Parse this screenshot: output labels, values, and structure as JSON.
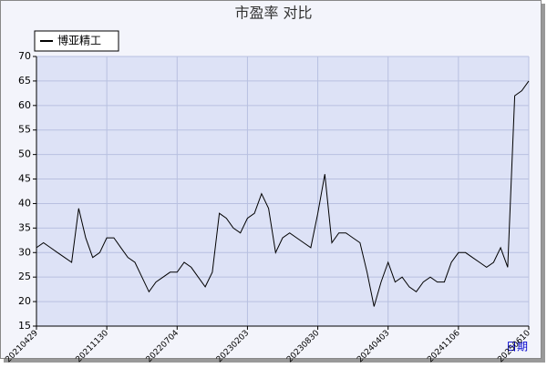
{
  "chart_data": {
    "type": "line",
    "title": "市盈率  对比",
    "x_label": "日期",
    "categories": [
      "20210429",
      null,
      null,
      null,
      null,
      null,
      null,
      null,
      null,
      null,
      "20211130",
      null,
      null,
      null,
      null,
      null,
      null,
      null,
      null,
      null,
      "20220704",
      null,
      null,
      null,
      null,
      null,
      null,
      null,
      null,
      null,
      "20230203",
      null,
      null,
      null,
      null,
      null,
      null,
      null,
      null,
      null,
      "20230830",
      null,
      null,
      null,
      null,
      null,
      null,
      null,
      null,
      null,
      "20240403",
      null,
      null,
      null,
      null,
      null,
      null,
      null,
      null,
      null,
      "20241106",
      null,
      null,
      null,
      null,
      null,
      null,
      null,
      null,
      null,
      "20250610"
    ],
    "series": [
      {
        "name": "博亚精工",
        "color": "#000000",
        "values": [
          31,
          32,
          31,
          30,
          29,
          28,
          39,
          33,
          29,
          30,
          33,
          33,
          31,
          29,
          28,
          25,
          22,
          24,
          25,
          26,
          26,
          28,
          27,
          25,
          23,
          26,
          38,
          37,
          35,
          34,
          37,
          38,
          42,
          39,
          30,
          33,
          34,
          33,
          32,
          31,
          38,
          46,
          32,
          34,
          34,
          33,
          32,
          26,
          19,
          24,
          28,
          24,
          25,
          23,
          22,
          24,
          25,
          24,
          24,
          28,
          30,
          30,
          29,
          28,
          27,
          28,
          31,
          27,
          62,
          63,
          65
        ]
      }
    ],
    "ylim": [
      15,
      70
    ],
    "yticks": [
      15,
      20,
      25,
      30,
      35,
      40,
      45,
      50,
      55,
      60,
      65,
      70
    ],
    "grid": true,
    "legend": "top-left"
  }
}
